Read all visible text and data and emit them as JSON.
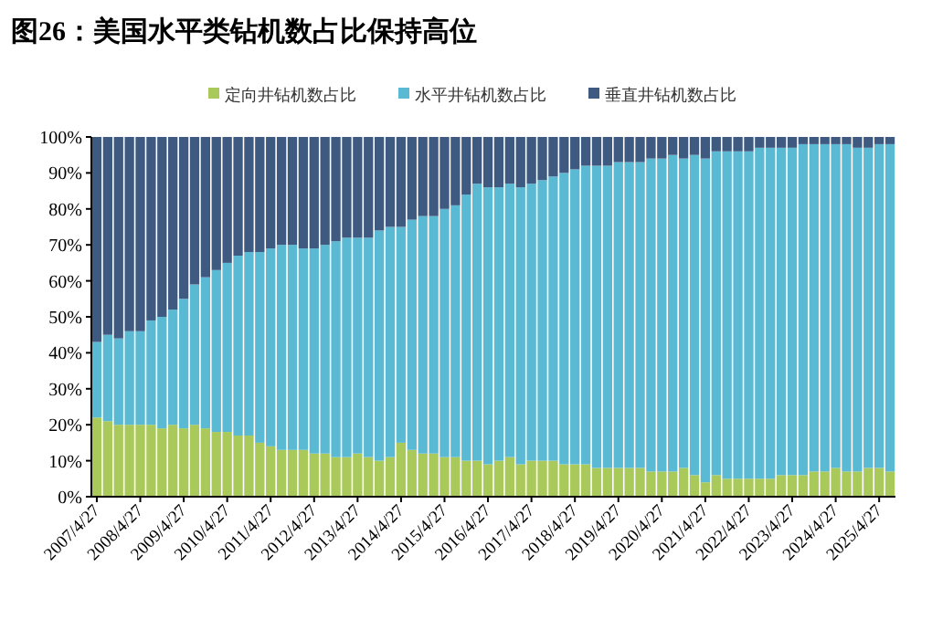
{
  "chart_data": {
    "type": "bar",
    "stacked": true,
    "title": "图26：美国水平类钻机数占比保持高位",
    "categories": [
      "2007/4/27",
      null,
      null,
      null,
      "2008/4/27",
      null,
      null,
      null,
      "2009/4/27",
      null,
      null,
      null,
      "2010/4/27",
      null,
      null,
      null,
      "2011/4/27",
      null,
      null,
      null,
      "2012/4/27",
      null,
      null,
      null,
      "2013/4/27",
      null,
      null,
      null,
      "2014/4/27",
      null,
      null,
      null,
      "2015/4/27",
      null,
      null,
      null,
      "2016/4/27",
      null,
      null,
      null,
      "2017/4/27",
      null,
      null,
      null,
      "2018/4/27",
      null,
      null,
      null,
      "2019/4/27",
      null,
      null,
      null,
      "2020/4/27",
      null,
      null,
      null,
      "2021/4/27",
      null,
      null,
      null,
      "2022/4/27",
      null,
      null,
      null,
      "2023/4/27",
      null,
      null,
      null,
      "2024/4/27",
      null,
      null,
      null,
      "2025/4/27",
      null
    ],
    "series": [
      {
        "name": "定向井钻机数占比",
        "color": "#a9c95a",
        "values": [
          22,
          21,
          20,
          20,
          20,
          20,
          19,
          20,
          19,
          20,
          19,
          18,
          18,
          17,
          17,
          15,
          14,
          13,
          13,
          13,
          12,
          12,
          11,
          11,
          12,
          11,
          10,
          11,
          15,
          13,
          12,
          12,
          11,
          11,
          10,
          10,
          9,
          10,
          11,
          9,
          10,
          10,
          10,
          9,
          9,
          9,
          8,
          8,
          8,
          8,
          8,
          7,
          7,
          7,
          8,
          6,
          4,
          6,
          5,
          5,
          5,
          5,
          5,
          6,
          6,
          6,
          7,
          7,
          8,
          7,
          7,
          8,
          8,
          7
        ]
      },
      {
        "name": "水平井钻机数占比",
        "color": "#5ab9d3",
        "values": [
          21,
          24,
          24,
          26,
          26,
          29,
          31,
          32,
          36,
          39,
          42,
          45,
          47,
          50,
          51,
          53,
          55,
          57,
          57,
          56,
          57,
          58,
          60,
          61,
          60,
          61,
          64,
          64,
          60,
          64,
          66,
          66,
          69,
          70,
          74,
          77,
          77,
          76,
          76,
          77,
          77,
          78,
          79,
          81,
          82,
          83,
          84,
          84,
          85,
          85,
          85,
          87,
          87,
          88,
          86,
          89,
          90,
          90,
          91,
          91,
          91,
          92,
          92,
          91,
          91,
          92,
          91,
          91,
          90,
          91,
          90,
          89,
          90,
          91
        ]
      },
      {
        "name": "垂直井钻机数占比",
        "color": "#3e5a80",
        "values": [
          57,
          55,
          56,
          54,
          54,
          51,
          50,
          48,
          45,
          41,
          39,
          37,
          35,
          33,
          32,
          32,
          31,
          30,
          30,
          31,
          31,
          30,
          29,
          28,
          28,
          28,
          26,
          25,
          25,
          23,
          22,
          22,
          20,
          19,
          16,
          13,
          14,
          14,
          13,
          14,
          13,
          12,
          11,
          10,
          9,
          8,
          8,
          8,
          7,
          7,
          7,
          6,
          6,
          5,
          6,
          5,
          6,
          4,
          4,
          4,
          4,
          3,
          3,
          3,
          3,
          2,
          2,
          2,
          2,
          2,
          3,
          3,
          2,
          2
        ]
      }
    ],
    "ylim": [
      0,
      100
    ],
    "yticks": [
      {
        "value": 0,
        "label": "0%"
      },
      {
        "value": 10,
        "label": "10%"
      },
      {
        "value": 20,
        "label": "20%"
      },
      {
        "value": 30,
        "label": "30%"
      },
      {
        "value": 40,
        "label": "40%"
      },
      {
        "value": 50,
        "label": "50%"
      },
      {
        "value": 60,
        "label": "60%"
      },
      {
        "value": 70,
        "label": "70%"
      },
      {
        "value": 80,
        "label": "80%"
      },
      {
        "value": 90,
        "label": "90%"
      },
      {
        "value": 100,
        "label": "100%"
      }
    ],
    "legend": "top"
  }
}
